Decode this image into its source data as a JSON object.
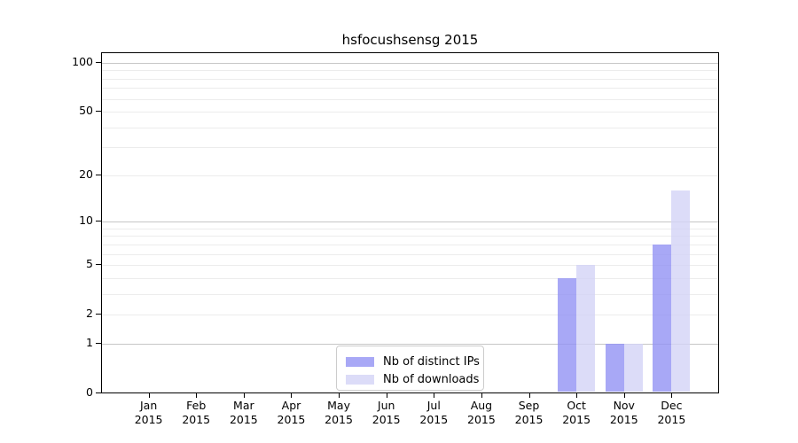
{
  "chart_data": {
    "type": "bar",
    "title": "hsfocushsensg 2015",
    "categories": [
      "Jan 2015",
      "Feb 2015",
      "Mar 2015",
      "Apr 2015",
      "May 2015",
      "Jun 2015",
      "Jul 2015",
      "Aug 2015",
      "Sep 2015",
      "Oct 2015",
      "Nov 2015",
      "Dec 2015"
    ],
    "x_months": [
      "Jan",
      "Feb",
      "Mar",
      "Apr",
      "May",
      "Jun",
      "Jul",
      "Aug",
      "Sep",
      "Oct",
      "Nov",
      "Dec"
    ],
    "x_year": "2015",
    "series": [
      {
        "name": "Nb of distinct IPs",
        "color": "#9292f4",
        "alpha": 0.8,
        "values": [
          0,
          0,
          0,
          0,
          0,
          0,
          0,
          0,
          0,
          4,
          1,
          7
        ]
      },
      {
        "name": "Nb of downloads",
        "color": "#d3d3f6",
        "alpha": 0.8,
        "values": [
          0,
          0,
          0,
          0,
          0,
          0,
          0,
          0,
          0,
          5,
          1,
          16
        ]
      }
    ],
    "yscale": "log1p",
    "ylim": [
      0,
      110
    ],
    "y_ticks": [
      0,
      1,
      2,
      5,
      10,
      20,
      50,
      100
    ],
    "y_major_gridlines": [
      1,
      10,
      100
    ],
    "y_minor_gridlines": [
      2,
      3,
      4,
      5,
      6,
      7,
      8,
      9,
      20,
      30,
      40,
      50,
      60,
      70,
      80,
      90
    ],
    "grid": "horizontal",
    "legend_position": "lower center"
  },
  "colors": {
    "background": "#ffffff",
    "axis": "#000000",
    "major_grid": "#c6c6c6",
    "minor_grid": "#ececec",
    "legend_border": "#cccccc",
    "bar_distinct_ips": "#a8a8f6",
    "bar_downloads": "#dbdbf8"
  }
}
